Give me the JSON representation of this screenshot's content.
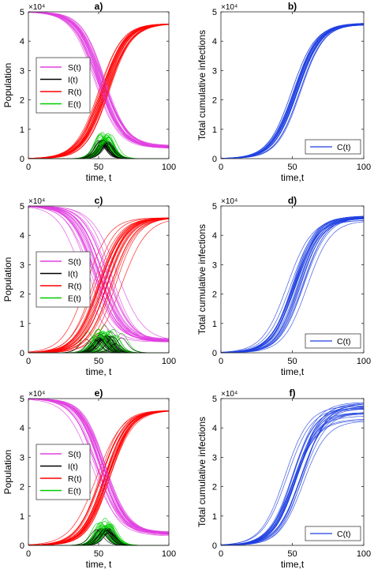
{
  "panels": [
    {
      "id": "a",
      "label": "a)",
      "ylabel": "Population",
      "xlabel": "time, t",
      "exponent": "×10⁴",
      "xticks": [
        "0",
        "50",
        "100"
      ],
      "yticks": [
        "0",
        "1",
        "2",
        "3",
        "4",
        "5"
      ],
      "legend": [
        "S(t)",
        "I(t)",
        "R(t)",
        "E(t)"
      ]
    },
    {
      "id": "b",
      "label": "b)",
      "ylabel": "Total cumulative infections",
      "xlabel": "time,t",
      "exponent": "×10⁴",
      "xticks": [
        "0",
        "50",
        "100"
      ],
      "yticks": [
        "0",
        "1",
        "2",
        "3",
        "4",
        "5"
      ],
      "legend": [
        "C(t)"
      ]
    },
    {
      "id": "c",
      "label": "c)",
      "ylabel": "Population",
      "xlabel": "time, t",
      "exponent": "×10⁴",
      "xticks": [
        "0",
        "50",
        "100"
      ],
      "yticks": [
        "0",
        "1",
        "2",
        "3",
        "4",
        "5"
      ],
      "legend": [
        "S(t)",
        "I(t)",
        "R(t)",
        "E(t)"
      ]
    },
    {
      "id": "d",
      "label": "d)",
      "ylabel": "Total cumulative infections",
      "xlabel": "time,t",
      "exponent": "×10⁴",
      "xticks": [
        "0",
        "50",
        "100"
      ],
      "yticks": [
        "0",
        "1",
        "2",
        "3",
        "4",
        "5"
      ],
      "legend": [
        "C(t)"
      ]
    },
    {
      "id": "e",
      "label": "e)",
      "ylabel": "Population",
      "xlabel": "time, t",
      "exponent": "×10⁴",
      "xticks": [
        "0",
        "50",
        "100"
      ],
      "yticks": [
        "0",
        "1",
        "2",
        "3",
        "4",
        "5"
      ],
      "legend": [
        "S(t)",
        "I(t)",
        "R(t)",
        "E(t)"
      ]
    },
    {
      "id": "f",
      "label": "f)",
      "ylabel": "Total cumulative infections",
      "xlabel": "time,t",
      "exponent": "×10⁴",
      "xticks": [
        "0",
        "50",
        "100"
      ],
      "yticks": [
        "0",
        "1",
        "2",
        "3",
        "4",
        "5"
      ],
      "legend": [
        "C(t)"
      ]
    }
  ],
  "colors": {
    "S": "#e040e0",
    "I": "#000000",
    "R": "#ff0000",
    "E": "#00cc00",
    "C": "#1f3fe0",
    "axis": "#262626"
  },
  "chart_data": [
    {
      "panel": "a",
      "type": "line",
      "xlim": [
        0,
        100
      ],
      "ylim": [
        0,
        50000
      ],
      "legend_position": "center-left",
      "representative_series": [
        {
          "name": "S(t)",
          "x": [
            0,
            20,
            40,
            50,
            55,
            60,
            70,
            80,
            100
          ],
          "y": [
            50000,
            49900,
            45000,
            25000,
            14000,
            8000,
            4500,
            4000,
            4000
          ]
        },
        {
          "name": "I(t)",
          "x": [
            0,
            30,
            40,
            50,
            55,
            60,
            70,
            80,
            100
          ],
          "y": [
            0,
            100,
            1500,
            4800,
            5500,
            4000,
            1200,
            200,
            0
          ]
        },
        {
          "name": "R(t)",
          "x": [
            0,
            30,
            40,
            50,
            55,
            60,
            70,
            80,
            100
          ],
          "y": [
            0,
            200,
            3000,
            20000,
            30000,
            37000,
            44000,
            46000,
            46000
          ]
        },
        {
          "name": "E(t)",
          "x": [
            0,
            30,
            40,
            50,
            55,
            60,
            70,
            80,
            100
          ],
          "y": [
            0,
            300,
            2500,
            7000,
            7500,
            5500,
            1500,
            200,
            0
          ]
        }
      ],
      "trajectory_count": 24
    },
    {
      "panel": "b",
      "type": "line",
      "xlim": [
        0,
        100
      ],
      "ylim": [
        0,
        50000
      ],
      "legend_position": "bottom-right",
      "representative_series": [
        {
          "name": "C(t)",
          "x": [
            0,
            30,
            40,
            50,
            55,
            60,
            70,
            80,
            100
          ],
          "y": [
            0,
            400,
            5000,
            25000,
            35000,
            41000,
            45500,
            46000,
            46000
          ]
        }
      ],
      "trajectory_count": 24
    },
    {
      "panel": "c",
      "type": "line",
      "xlim": [
        0,
        100
      ],
      "ylim": [
        0,
        50000
      ],
      "legend_position": "center-left",
      "representative_series": [
        {
          "name": "S(t)",
          "x": [
            0,
            20,
            40,
            50,
            55,
            60,
            70,
            80,
            100
          ],
          "y": [
            50000,
            49800,
            45000,
            28000,
            16000,
            9000,
            5000,
            4200,
            4000
          ]
        },
        {
          "name": "I(t)",
          "x": [
            0,
            30,
            40,
            50,
            55,
            60,
            70,
            80,
            100
          ],
          "y": [
            0,
            100,
            1500,
            5000,
            5500,
            4200,
            1300,
            200,
            0
          ]
        },
        {
          "name": "R(t)",
          "x": [
            0,
            30,
            40,
            50,
            55,
            60,
            70,
            80,
            100
          ],
          "y": [
            0,
            200,
            3000,
            18000,
            28000,
            36000,
            44000,
            46000,
            46500
          ]
        },
        {
          "name": "E(t)",
          "x": [
            0,
            30,
            40,
            50,
            55,
            60,
            70,
            80,
            100
          ],
          "y": [
            0,
            300,
            2500,
            7500,
            8000,
            6000,
            1600,
            200,
            0
          ]
        }
      ],
      "trajectory_count": 24
    },
    {
      "panel": "d",
      "type": "line",
      "xlim": [
        0,
        100
      ],
      "ylim": [
        0,
        50000
      ],
      "legend_position": "bottom-right",
      "representative_series": [
        {
          "name": "C(t)",
          "x": [
            0,
            30,
            40,
            50,
            55,
            60,
            70,
            80,
            100
          ],
          "y": [
            0,
            400,
            5000,
            24000,
            34000,
            40500,
            45000,
            46000,
            46500
          ]
        }
      ],
      "trajectory_count": 24
    },
    {
      "panel": "e",
      "type": "line",
      "xlim": [
        0,
        100
      ],
      "ylim": [
        0,
        50000
      ],
      "legend_position": "center-left",
      "representative_series": [
        {
          "name": "S(t)",
          "x": [
            0,
            20,
            40,
            50,
            55,
            60,
            70,
            80,
            100
          ],
          "y": [
            50000,
            49900,
            45000,
            25000,
            14000,
            8000,
            4500,
            4000,
            3800
          ]
        },
        {
          "name": "I(t)",
          "x": [
            0,
            30,
            40,
            50,
            55,
            60,
            70,
            80,
            100
          ],
          "y": [
            0,
            100,
            1500,
            4800,
            5300,
            4000,
            1200,
            200,
            0
          ]
        },
        {
          "name": "R(t)",
          "x": [
            0,
            30,
            40,
            50,
            55,
            60,
            70,
            80,
            100
          ],
          "y": [
            0,
            200,
            3000,
            20000,
            30000,
            37000,
            44000,
            46000,
            46000
          ]
        },
        {
          "name": "E(t)",
          "x": [
            0,
            30,
            40,
            50,
            55,
            60,
            70,
            80,
            100
          ],
          "y": [
            0,
            300,
            2500,
            6500,
            7000,
            5200,
            1500,
            200,
            0
          ]
        }
      ],
      "trajectory_count": 24
    },
    {
      "panel": "f",
      "type": "line",
      "xlim": [
        0,
        100
      ],
      "ylim": [
        0,
        50000
      ],
      "legend_position": "bottom-right",
      "representative_series": [
        {
          "name": "C(t)",
          "x": [
            0,
            30,
            40,
            50,
            55,
            60,
            70,
            80,
            100
          ],
          "y": [
            0,
            400,
            5000,
            25000,
            35000,
            41000,
            45500,
            46500,
            47000
          ]
        }
      ],
      "trajectory_count": 24
    }
  ]
}
